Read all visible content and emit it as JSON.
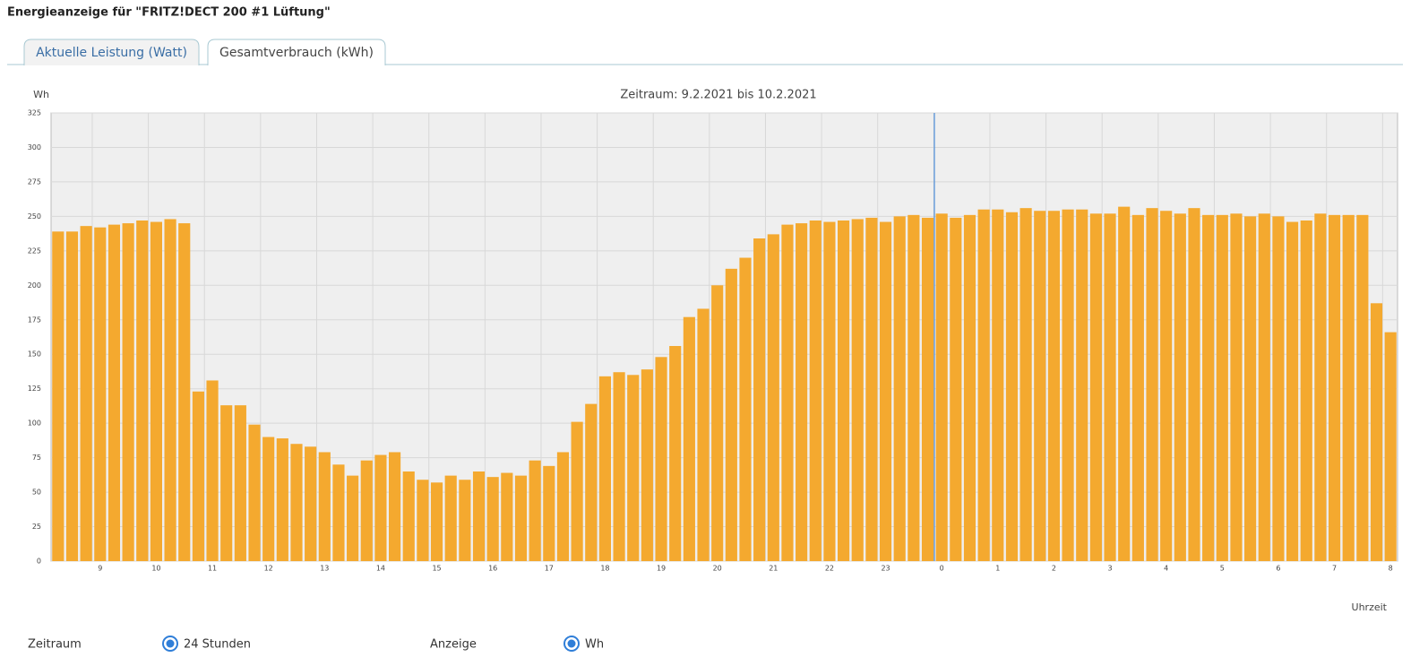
{
  "header": {
    "title": "Energieanzeige für \"FRITZ!DECT 200 #1 Lüftung\""
  },
  "tabs": [
    {
      "label": "Aktuelle Leistung (Watt)",
      "active": false
    },
    {
      "label": "Gesamtverbrauch (kWh)",
      "active": true
    }
  ],
  "chart_data": {
    "type": "bar",
    "title": "Zeitraum: 9.2.2021 bis 10.2.2021",
    "y_label": "Wh",
    "x_label": "Uhrzeit",
    "color": "#f4a92f",
    "grid": true,
    "categories": [
      null,
      null,
      null,
      "9",
      null,
      null,
      null,
      "10",
      null,
      null,
      null,
      "11",
      null,
      null,
      null,
      "12",
      null,
      null,
      null,
      "13",
      null,
      null,
      null,
      "14",
      null,
      null,
      null,
      "15",
      null,
      null,
      null,
      "16",
      null,
      null,
      null,
      "17",
      null,
      null,
      null,
      "18",
      null,
      null,
      null,
      "19",
      null,
      null,
      null,
      "20",
      null,
      null,
      null,
      "21",
      null,
      null,
      null,
      "22",
      null,
      null,
      null,
      "23",
      null,
      null,
      null,
      "0",
      null,
      null,
      null,
      "1",
      null,
      null,
      null,
      "2",
      null,
      null,
      null,
      "3",
      null,
      null,
      null,
      "4",
      null,
      null,
      null,
      "5",
      null,
      null,
      null,
      "6",
      null,
      null,
      null,
      "7",
      null,
      null,
      null,
      "8"
    ],
    "values": [
      239,
      239,
      243,
      242,
      244,
      245,
      247,
      246,
      248,
      245,
      123,
      131,
      113,
      113,
      99,
      90,
      89,
      85,
      83,
      79,
      70,
      62,
      73,
      77,
      79,
      65,
      59,
      57,
      62,
      59,
      65,
      61,
      64,
      62,
      73,
      69,
      79,
      101,
      114,
      134,
      137,
      135,
      139,
      148,
      156,
      177,
      183,
      200,
      212,
      220,
      234,
      237,
      244,
      245,
      247,
      246,
      247,
      248,
      249,
      246,
      250,
      251,
      249,
      252,
      249,
      251,
      255,
      255,
      253,
      256,
      254,
      254,
      255,
      255,
      252,
      252,
      257,
      251,
      256,
      254,
      252,
      256,
      251,
      251,
      252,
      250,
      252,
      250,
      246,
      247,
      252,
      251,
      251,
      251,
      187,
      166
    ],
    "ylim": [
      0,
      325
    ],
    "yticks": [
      0,
      25,
      50,
      75,
      100,
      125,
      150,
      175,
      200,
      225,
      250,
      275,
      300,
      325
    ]
  },
  "controls": [
    {
      "label": "Zeitraum",
      "option": "24 Stunden"
    },
    {
      "label": "Anzeige",
      "option": "Wh"
    }
  ]
}
